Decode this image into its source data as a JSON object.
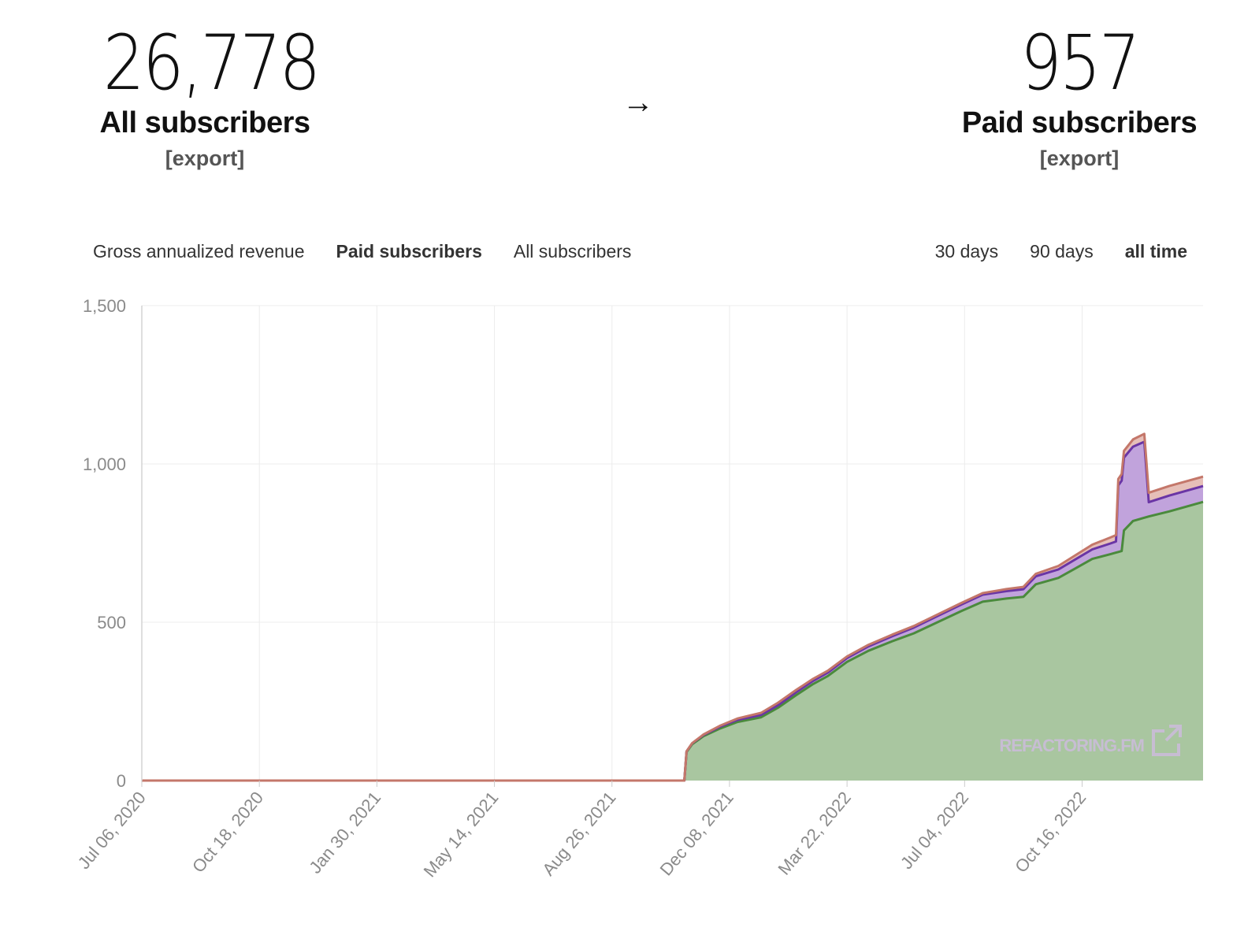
{
  "stats": {
    "all": {
      "value": "26,778",
      "label": "All subscribers",
      "export": "[export]"
    },
    "arrow": "→",
    "paid": {
      "value": "957",
      "label": "Paid subscribers",
      "export": "[export]"
    }
  },
  "metric_tabs": [
    {
      "label": "Gross annualized revenue",
      "active": false
    },
    {
      "label": "Paid subscribers",
      "active": true
    },
    {
      "label": "All subscribers",
      "active": false
    }
  ],
  "range_tabs": [
    {
      "label": "30 days",
      "active": false
    },
    {
      "label": "90 days",
      "active": false
    },
    {
      "label": "all time",
      "active": true
    }
  ],
  "watermark": "REFACTORING.FM",
  "chart_data": {
    "type": "area",
    "title": "",
    "xlabel": "",
    "ylabel": "",
    "ylim": [
      0,
      1500
    ],
    "yticks": [
      0,
      500,
      1000,
      1500
    ],
    "ytick_labels": [
      "0",
      "500",
      "1,000",
      "1,500"
    ],
    "xlim": [
      "2020-07-06",
      "2023-01-31"
    ],
    "xticks": [
      "2020-07-06",
      "2020-10-18",
      "2021-01-30",
      "2021-05-14",
      "2021-08-26",
      "2021-12-08",
      "2022-03-22",
      "2022-07-04",
      "2022-10-16"
    ],
    "xtick_labels": [
      "Jul 06, 2020",
      "Oct 18, 2020",
      "Jan 30, 2021",
      "May 14, 2021",
      "Aug 26, 2021",
      "Dec 08, 2021",
      "Mar 22, 2022",
      "Jul 04, 2022",
      "Oct 16, 2022"
    ],
    "grid": true,
    "stacked": true,
    "series": [
      {
        "color": "#4a8a3c",
        "fill": "#a9c6a0",
        "points": [
          [
            "2020-07-06",
            0
          ],
          [
            "2021-10-29",
            0
          ],
          [
            "2021-10-31",
            90
          ],
          [
            "2021-11-05",
            115
          ],
          [
            "2021-11-15",
            140
          ],
          [
            "2021-11-30",
            165
          ],
          [
            "2021-12-15",
            185
          ],
          [
            "2022-01-05",
            200
          ],
          [
            "2022-01-20",
            230
          ],
          [
            "2022-02-05",
            270
          ],
          [
            "2022-02-20",
            305
          ],
          [
            "2022-03-05",
            330
          ],
          [
            "2022-03-22",
            375
          ],
          [
            "2022-04-10",
            410
          ],
          [
            "2022-05-01",
            440
          ],
          [
            "2022-05-20",
            465
          ],
          [
            "2022-06-10",
            500
          ],
          [
            "2022-07-01",
            535
          ],
          [
            "2022-07-20",
            565
          ],
          [
            "2022-08-10",
            575
          ],
          [
            "2022-08-25",
            580
          ],
          [
            "2022-09-05",
            620
          ],
          [
            "2022-09-25",
            640
          ],
          [
            "2022-10-10",
            670
          ],
          [
            "2022-10-25",
            700
          ],
          [
            "2022-11-10",
            715
          ],
          [
            "2022-11-20",
            725
          ],
          [
            "2022-11-22",
            790
          ],
          [
            "2022-11-30",
            820
          ],
          [
            "2022-12-15",
            835
          ],
          [
            "2023-01-01",
            850
          ],
          [
            "2023-01-31",
            880
          ]
        ]
      },
      {
        "color": "#6a35a5",
        "fill": "#c1a3dc",
        "points": [
          [
            "2020-07-06",
            0
          ],
          [
            "2021-10-29",
            0
          ],
          [
            "2021-10-31",
            2
          ],
          [
            "2021-11-30",
            6
          ],
          [
            "2022-01-20",
            8
          ],
          [
            "2022-03-22",
            12
          ],
          [
            "2022-05-20",
            18
          ],
          [
            "2022-07-20",
            22
          ],
          [
            "2022-09-05",
            25
          ],
          [
            "2022-10-25",
            30
          ],
          [
            "2022-11-15",
            35
          ],
          [
            "2022-11-17",
            210
          ],
          [
            "2022-11-22",
            230
          ],
          [
            "2022-12-10",
            240
          ],
          [
            "2022-12-14",
            45
          ],
          [
            "2023-01-01",
            50
          ],
          [
            "2023-01-31",
            50
          ]
        ]
      },
      {
        "color": "#c4776a",
        "fill": "#e6bfb8",
        "points": [
          [
            "2020-07-06",
            0
          ],
          [
            "2021-10-29",
            0
          ],
          [
            "2021-11-30",
            3
          ],
          [
            "2022-01-20",
            8
          ],
          [
            "2022-03-22",
            5
          ],
          [
            "2022-05-20",
            5
          ],
          [
            "2022-07-20",
            5
          ],
          [
            "2022-09-05",
            8
          ],
          [
            "2022-10-25",
            15
          ],
          [
            "2022-11-15",
            20
          ],
          [
            "2022-12-10",
            25
          ],
          [
            "2022-12-14",
            30
          ],
          [
            "2023-01-01",
            30
          ],
          [
            "2023-01-31",
            30
          ]
        ]
      }
    ]
  }
}
